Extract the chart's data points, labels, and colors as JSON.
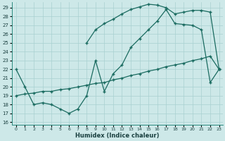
{
  "xlabel": "Humidex (Indice chaleur)",
  "bg_color": "#cde8e8",
  "line_color": "#1a6b60",
  "grid_color": "#a8d0d0",
  "xlim_min": -0.5,
  "xlim_max": 23.4,
  "ylim_min": 15.7,
  "ylim_max": 29.6,
  "xticks": [
    0,
    1,
    2,
    3,
    4,
    5,
    6,
    7,
    8,
    9,
    10,
    11,
    12,
    13,
    14,
    15,
    16,
    17,
    18,
    19,
    20,
    21,
    22,
    23
  ],
  "yticks": [
    16,
    17,
    18,
    19,
    20,
    21,
    22,
    23,
    24,
    25,
    26,
    27,
    28,
    29
  ],
  "line1_x": [
    8,
    9,
    10,
    11,
    12,
    13,
    14,
    15,
    16,
    17,
    18,
    19,
    20,
    21,
    22,
    23
  ],
  "line1_y": [
    25.0,
    26.5,
    27.2,
    27.7,
    28.3,
    28.8,
    29.1,
    29.4,
    29.3,
    29.0,
    28.3,
    28.5,
    28.7,
    28.7,
    28.5,
    22.0
  ],
  "line2_x": [
    0,
    1,
    2,
    3,
    4,
    5,
    6,
    7,
    8,
    9,
    10,
    11,
    12,
    13,
    14,
    15,
    16,
    17,
    18,
    19,
    20,
    21,
    22,
    23
  ],
  "line2_y": [
    22.0,
    20.0,
    18.0,
    18.2,
    18.0,
    17.5,
    17.0,
    17.5,
    19.0,
    23.0,
    19.5,
    21.5,
    22.5,
    24.5,
    25.5,
    26.5,
    27.5,
    28.8,
    27.2,
    27.1,
    27.0,
    26.5,
    20.5,
    22.0
  ],
  "line3_x": [
    0,
    1,
    2,
    3,
    4,
    5,
    6,
    7,
    8,
    9,
    10,
    11,
    12,
    13,
    14,
    15,
    16,
    17,
    18,
    19,
    20,
    21,
    22,
    23
  ],
  "line3_y": [
    19.0,
    19.2,
    19.3,
    19.5,
    19.5,
    19.7,
    19.8,
    20.0,
    20.2,
    20.4,
    20.5,
    20.8,
    21.0,
    21.3,
    21.5,
    21.8,
    22.0,
    22.3,
    22.5,
    22.7,
    23.0,
    23.2,
    23.5,
    22.0
  ]
}
